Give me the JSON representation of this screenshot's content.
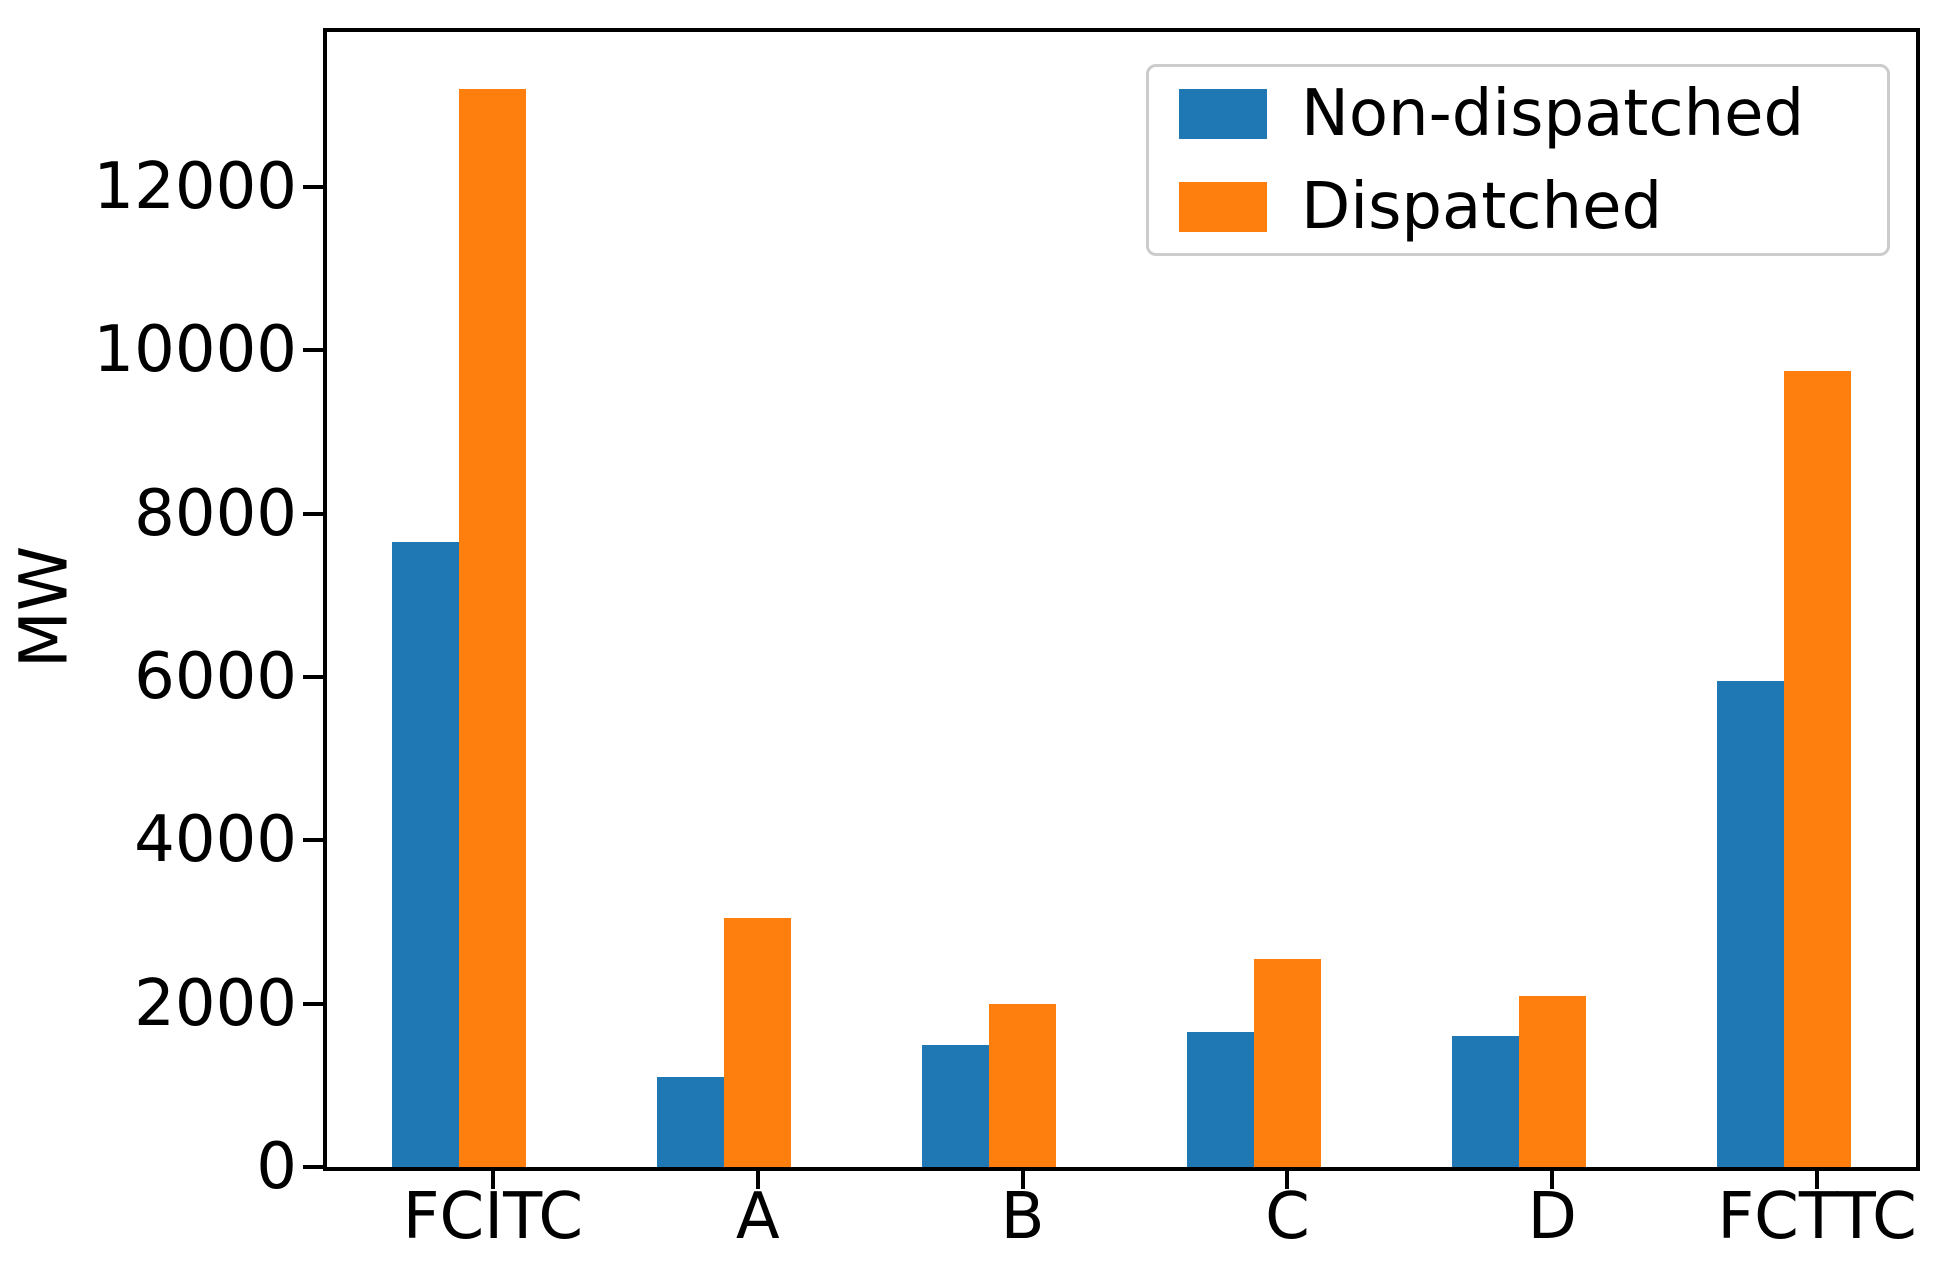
{
  "chart_data": {
    "type": "bar",
    "title": "",
    "xlabel": "",
    "ylabel": "MW",
    "categories": [
      "FCITC",
      "A",
      "B",
      "C",
      "D",
      "FCTTC"
    ],
    "series": [
      {
        "name": "Non-dispatched",
        "color": "#1f77b4",
        "values": [
          7650,
          1100,
          1500,
          1650,
          1600,
          5950
        ]
      },
      {
        "name": "Dispatched",
        "color": "#ff7f0e",
        "values": [
          13200,
          3050,
          2000,
          2550,
          2100,
          9750
        ]
      }
    ],
    "ylim": [
      0,
      13900
    ],
    "yticks": [
      0,
      2000,
      4000,
      6000,
      8000,
      10000,
      12000
    ],
    "grid": false,
    "legend": {
      "position": "upper-right",
      "entries": [
        "Non-dispatched",
        "Dispatched"
      ]
    },
    "axis_color": "#000000",
    "text_color": "#000000",
    "legend_border_color": "#cccccc"
  }
}
